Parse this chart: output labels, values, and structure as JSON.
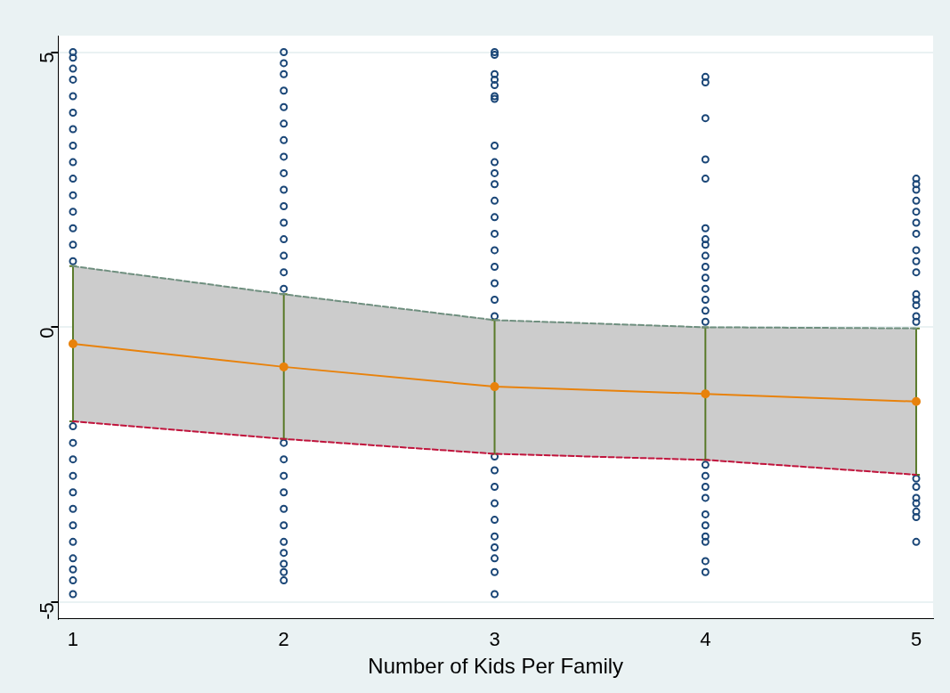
{
  "chart_data": {
    "type": "line",
    "xlabel": "Number of Kids Per Family",
    "xlim": [
      0.93,
      5.08
    ],
    "xticks": [
      1,
      2,
      3,
      4,
      5
    ],
    "ylim": [
      -5.3,
      5.3
    ],
    "yticks": [
      -5,
      0,
      5
    ],
    "grid": "y",
    "legend": false,
    "series": [
      {
        "type": "scatter",
        "color": "#1a4677",
        "marker": "circle",
        "x": [
          1,
          1,
          1,
          1,
          1,
          1,
          1,
          1,
          1,
          1,
          1,
          1,
          1,
          1,
          1,
          1,
          1,
          1,
          1,
          1,
          1,
          1,
          1,
          1,
          1,
          1,
          1,
          2,
          2,
          2,
          2,
          2,
          2,
          2,
          2,
          2,
          2,
          2,
          2,
          2,
          2,
          2,
          2,
          2,
          2,
          2,
          2,
          2,
          2,
          2,
          2,
          2,
          2,
          2,
          3,
          3,
          3,
          3,
          3,
          3,
          3,
          3,
          3,
          3,
          3,
          3,
          3,
          3,
          3,
          3,
          3,
          3,
          3,
          3,
          3,
          3,
          3,
          3,
          3,
          3,
          3,
          3,
          3,
          4,
          4,
          4,
          4,
          4,
          4,
          4,
          4,
          4,
          4,
          4,
          4,
          4,
          4,
          4,
          4,
          4,
          4,
          4,
          4,
          4,
          4,
          4,
          4,
          4,
          5,
          5,
          5,
          5,
          5,
          5,
          5,
          5,
          5,
          5,
          5,
          5,
          5,
          5,
          5,
          5,
          5,
          5,
          5,
          5,
          5,
          5
        ],
        "values": [
          1.2,
          1.5,
          1.8,
          2.1,
          2.4,
          2.7,
          3.0,
          3.3,
          3.6,
          3.9,
          4.2,
          4.5,
          4.7,
          4.9,
          5.0,
          -1.8,
          -2.1,
          -2.4,
          -2.7,
          -3.0,
          -3.3,
          -3.6,
          -3.9,
          -4.2,
          -4.4,
          -4.6,
          -4.85,
          0.7,
          1.0,
          1.3,
          1.6,
          1.9,
          2.2,
          2.5,
          2.8,
          3.1,
          3.4,
          3.7,
          4.0,
          4.3,
          4.6,
          4.8,
          5.0,
          -2.1,
          -2.4,
          -2.7,
          -3.0,
          -3.3,
          -3.6,
          -3.9,
          -4.1,
          -4.3,
          -4.45,
          -4.6,
          0.2,
          0.5,
          0.8,
          1.1,
          1.4,
          1.7,
          2.0,
          2.3,
          2.6,
          2.8,
          3.0,
          3.3,
          4.15,
          4.2,
          4.4,
          4.5,
          4.6,
          4.95,
          5.0,
          -2.35,
          -2.6,
          -2.9,
          -3.2,
          -3.5,
          -3.8,
          -4.0,
          -4.2,
          -4.45,
          -4.85,
          0.1,
          0.3,
          0.5,
          0.7,
          0.9,
          1.1,
          1.3,
          1.5,
          1.6,
          1.8,
          2.7,
          3.05,
          3.8,
          4.45,
          4.55,
          -2.5,
          -2.7,
          -2.9,
          -3.1,
          -3.4,
          -3.6,
          -3.8,
          -3.9,
          -4.25,
          -4.45,
          0.1,
          0.2,
          0.4,
          0.5,
          0.6,
          1.0,
          1.2,
          1.4,
          1.7,
          1.9,
          2.1,
          2.3,
          2.5,
          2.6,
          2.7,
          -2.75,
          -2.9,
          -3.1,
          -3.2,
          -3.35,
          -3.45,
          -3.9
        ]
      },
      {
        "type": "line",
        "color": "#6f8f7f",
        "line_style": "dashed",
        "marker": "none",
        "x": [
          1,
          2,
          3,
          4,
          5
        ],
        "values": [
          1.11,
          0.6,
          0.13,
          0.0,
          -0.02
        ]
      },
      {
        "type": "line",
        "color": "#c0143c",
        "line_style": "dashed",
        "marker": "none",
        "x": [
          1,
          2,
          3,
          4,
          5
        ],
        "values": [
          -1.71,
          -2.03,
          -2.3,
          -2.41,
          -2.68
        ]
      },
      {
        "type": "line",
        "color": "#e8820c",
        "line_style": "solid",
        "marker": "circle",
        "x": [
          1,
          2,
          3,
          4,
          5
        ],
        "values": [
          -0.3,
          -0.72,
          -1.08,
          -1.21,
          -1.35
        ],
        "lower": [
          -1.71,
          -2.03,
          -2.3,
          -2.41,
          -2.68
        ],
        "upper": [
          1.11,
          0.6,
          0.13,
          0.0,
          -0.02
        ],
        "errors": [
          [
            -1.71,
            1.11
          ],
          [
            -2.03,
            0.6
          ],
          [
            -2.3,
            0.13
          ],
          [
            -2.41,
            0.0
          ],
          [
            -2.68,
            -0.02
          ]
        ]
      }
    ]
  }
}
